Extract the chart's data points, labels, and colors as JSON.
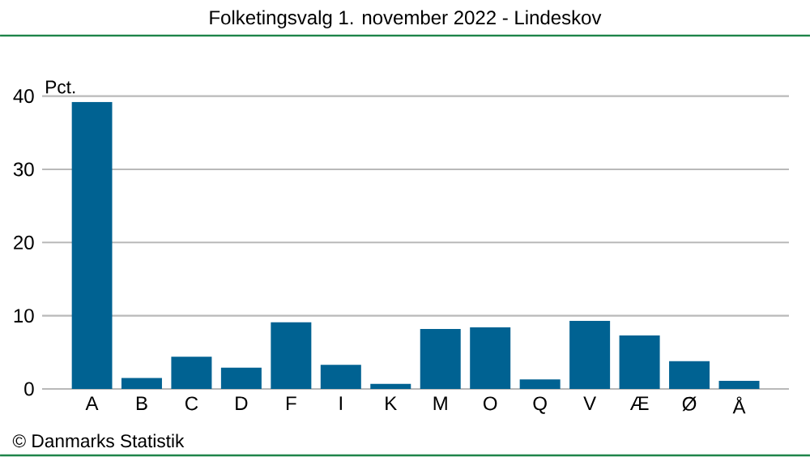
{
  "chart_data": {
    "type": "bar",
    "title": "Folketingsvalg 1. november 2022 - Lindeskov",
    "ylabel": "Pct.",
    "categories": [
      "A",
      "B",
      "C",
      "D",
      "F",
      "I",
      "K",
      "M",
      "O",
      "Q",
      "V",
      "Æ",
      "Ø",
      "Å"
    ],
    "values": [
      39.2,
      1.5,
      4.4,
      2.9,
      9.1,
      3.3,
      0.7,
      8.2,
      8.4,
      1.3,
      9.3,
      7.3,
      3.8,
      1.1
    ],
    "color": "#006292",
    "ylim": [
      0,
      40
    ],
    "yticks": [
      0,
      10,
      20,
      30,
      40
    ],
    "grid": "y",
    "annotations": [
      "© Danmarks Statistik"
    ]
  }
}
